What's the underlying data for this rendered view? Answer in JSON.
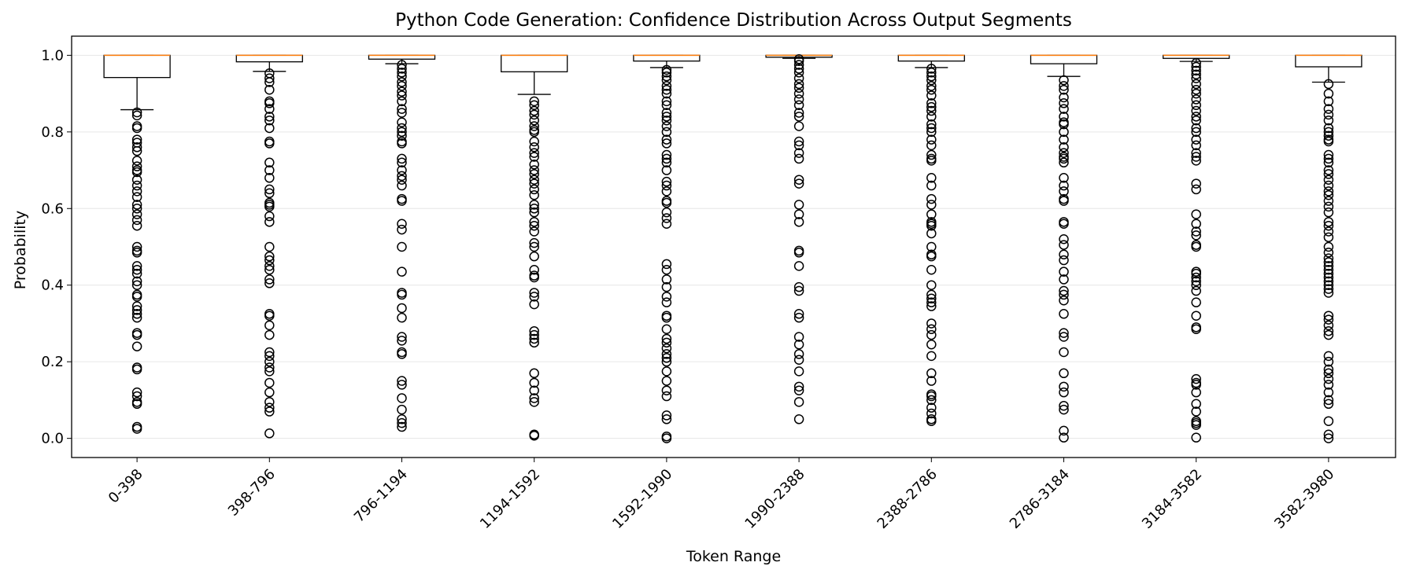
{
  "chart_data": {
    "type": "box",
    "title": "Python Code Generation: Confidence Distribution Across Output Segments",
    "xlabel": "Token Range",
    "ylabel": "Probability",
    "ylim": [
      -0.05,
      1.05
    ],
    "yticks": [
      0.0,
      0.2,
      0.4,
      0.6,
      0.8,
      1.0
    ],
    "ytick_labels": [
      "0.0",
      "0.2",
      "0.4",
      "0.6",
      "0.8",
      "1.0"
    ],
    "grid": "horizontal",
    "colors": {
      "box": "#000000",
      "median": "#ff7f0e",
      "grid": "#e6e6e6"
    },
    "categories": [
      "0-398",
      "398-796",
      "796-1194",
      "1194-1592",
      "1592-1990",
      "1990-2388",
      "2388-2786",
      "2786-3184",
      "3184-3582",
      "3582-3980"
    ],
    "boxes": [
      {
        "q1": 0.942,
        "median": 1.0,
        "q3": 1.0,
        "whisker_low": 0.858,
        "whisker_high": 1.0,
        "outliers": [
          0.851,
          0.843,
          0.815,
          0.81,
          0.78,
          0.772,
          0.76,
          0.75,
          0.725,
          0.71,
          0.7,
          0.695,
          0.675,
          0.66,
          0.645,
          0.63,
          0.61,
          0.6,
          0.585,
          0.57,
          0.555,
          0.5,
          0.49,
          0.485,
          0.45,
          0.44,
          0.43,
          0.41,
          0.4,
          0.375,
          0.37,
          0.345,
          0.335,
          0.325,
          0.315,
          0.275,
          0.27,
          0.24,
          0.185,
          0.18,
          0.12,
          0.11,
          0.095,
          0.09,
          0.03,
          0.025
        ]
      },
      {
        "q1": 0.983,
        "median": 1.0,
        "q3": 1.0,
        "whisker_low": 0.958,
        "whisker_high": 1.0,
        "outliers": [
          0.953,
          0.94,
          0.93,
          0.91,
          0.88,
          0.875,
          0.86,
          0.84,
          0.83,
          0.81,
          0.775,
          0.77,
          0.72,
          0.7,
          0.68,
          0.65,
          0.64,
          0.615,
          0.61,
          0.605,
          0.58,
          0.565,
          0.5,
          0.475,
          0.465,
          0.45,
          0.44,
          0.415,
          0.405,
          0.325,
          0.32,
          0.295,
          0.27,
          0.225,
          0.215,
          0.2,
          0.185,
          0.175,
          0.145,
          0.12,
          0.095,
          0.08,
          0.07,
          0.013
        ]
      },
      {
        "q1": 0.99,
        "median": 1.0,
        "q3": 1.0,
        "whisker_low": 0.978,
        "whisker_high": 1.0,
        "outliers": [
          0.975,
          0.965,
          0.955,
          0.945,
          0.93,
          0.92,
          0.905,
          0.895,
          0.88,
          0.86,
          0.85,
          0.825,
          0.81,
          0.8,
          0.79,
          0.775,
          0.77,
          0.73,
          0.72,
          0.7,
          0.685,
          0.675,
          0.66,
          0.625,
          0.62,
          0.56,
          0.545,
          0.5,
          0.435,
          0.38,
          0.375,
          0.34,
          0.315,
          0.265,
          0.255,
          0.225,
          0.22,
          0.15,
          0.14,
          0.105,
          0.075,
          0.05,
          0.04,
          0.03
        ]
      },
      {
        "q1": 0.957,
        "median": 1.0,
        "q3": 1.0,
        "whisker_low": 0.898,
        "whisker_high": 1.0,
        "outliers": [
          0.88,
          0.87,
          0.855,
          0.845,
          0.83,
          0.815,
          0.805,
          0.8,
          0.775,
          0.76,
          0.745,
          0.735,
          0.715,
          0.7,
          0.69,
          0.675,
          0.665,
          0.65,
          0.635,
          0.61,
          0.6,
          0.59,
          0.565,
          0.555,
          0.54,
          0.51,
          0.5,
          0.475,
          0.44,
          0.425,
          0.42,
          0.38,
          0.37,
          0.35,
          0.28,
          0.27,
          0.26,
          0.25,
          0.17,
          0.145,
          0.125,
          0.105,
          0.095,
          0.01,
          0.007
        ]
      },
      {
        "q1": 0.985,
        "median": 1.0,
        "q3": 1.0,
        "whisker_low": 0.968,
        "whisker_high": 1.0,
        "outliers": [
          0.962,
          0.955,
          0.945,
          0.935,
          0.92,
          0.91,
          0.9,
          0.88,
          0.87,
          0.85,
          0.84,
          0.83,
          0.815,
          0.8,
          0.78,
          0.77,
          0.74,
          0.73,
          0.72,
          0.7,
          0.67,
          0.66,
          0.645,
          0.62,
          0.615,
          0.59,
          0.575,
          0.56,
          0.455,
          0.44,
          0.415,
          0.395,
          0.37,
          0.355,
          0.32,
          0.315,
          0.285,
          0.26,
          0.25,
          0.235,
          0.22,
          0.21,
          0.2,
          0.175,
          0.15,
          0.125,
          0.11,
          0.06,
          0.05,
          0.005,
          0.0
        ]
      },
      {
        "q1": 0.995,
        "median": 1.0,
        "q3": 1.0,
        "whisker_low": 0.992,
        "whisker_high": 1.0,
        "outliers": [
          0.99,
          0.985,
          0.975,
          0.965,
          0.955,
          0.94,
          0.925,
          0.915,
          0.9,
          0.885,
          0.87,
          0.85,
          0.84,
          0.815,
          0.775,
          0.765,
          0.745,
          0.73,
          0.675,
          0.665,
          0.61,
          0.585,
          0.565,
          0.49,
          0.485,
          0.45,
          0.395,
          0.385,
          0.325,
          0.315,
          0.265,
          0.245,
          0.22,
          0.205,
          0.175,
          0.135,
          0.125,
          0.095,
          0.05
        ]
      },
      {
        "q1": 0.985,
        "median": 1.0,
        "q3": 1.0,
        "whisker_low": 0.968,
        "whisker_high": 1.0,
        "outliers": [
          0.965,
          0.955,
          0.945,
          0.935,
          0.92,
          0.91,
          0.895,
          0.875,
          0.865,
          0.855,
          0.84,
          0.82,
          0.81,
          0.8,
          0.78,
          0.765,
          0.74,
          0.73,
          0.725,
          0.68,
          0.66,
          0.625,
          0.61,
          0.585,
          0.565,
          0.56,
          0.555,
          0.535,
          0.5,
          0.48,
          0.475,
          0.44,
          0.4,
          0.375,
          0.365,
          0.355,
          0.345,
          0.3,
          0.285,
          0.27,
          0.245,
          0.215,
          0.17,
          0.15,
          0.115,
          0.11,
          0.1,
          0.08,
          0.065,
          0.05,
          0.045
        ]
      },
      {
        "q1": 0.978,
        "median": 1.0,
        "q3": 1.0,
        "whisker_low": 0.945,
        "whisker_high": 1.0,
        "outliers": [
          0.935,
          0.92,
          0.91,
          0.89,
          0.875,
          0.86,
          0.84,
          0.825,
          0.82,
          0.8,
          0.78,
          0.76,
          0.745,
          0.735,
          0.73,
          0.72,
          0.68,
          0.66,
          0.645,
          0.625,
          0.62,
          0.565,
          0.56,
          0.52,
          0.505,
          0.48,
          0.465,
          0.435,
          0.415,
          0.385,
          0.375,
          0.36,
          0.325,
          0.275,
          0.265,
          0.225,
          0.17,
          0.135,
          0.12,
          0.085,
          0.075,
          0.02,
          0.002
        ]
      },
      {
        "q1": 0.992,
        "median": 1.0,
        "q3": 1.0,
        "whisker_low": 0.984,
        "whisker_high": 1.0,
        "outliers": [
          0.98,
          0.97,
          0.96,
          0.95,
          0.94,
          0.925,
          0.91,
          0.9,
          0.885,
          0.87,
          0.855,
          0.84,
          0.83,
          0.81,
          0.8,
          0.78,
          0.765,
          0.745,
          0.735,
          0.725,
          0.665,
          0.65,
          0.585,
          0.56,
          0.54,
          0.53,
          0.505,
          0.5,
          0.435,
          0.43,
          0.42,
          0.41,
          0.4,
          0.385,
          0.355,
          0.32,
          0.29,
          0.285,
          0.155,
          0.145,
          0.14,
          0.12,
          0.09,
          0.07,
          0.045,
          0.04,
          0.035,
          0.002
        ]
      },
      {
        "q1": 0.97,
        "median": 1.0,
        "q3": 1.0,
        "whisker_low": 0.93,
        "whisker_high": 1.0,
        "outliers": [
          0.925,
          0.9,
          0.88,
          0.86,
          0.845,
          0.83,
          0.81,
          0.8,
          0.79,
          0.78,
          0.775,
          0.74,
          0.73,
          0.72,
          0.7,
          0.69,
          0.675,
          0.66,
          0.645,
          0.635,
          0.62,
          0.605,
          0.59,
          0.565,
          0.555,
          0.54,
          0.525,
          0.5,
          0.485,
          0.47,
          0.46,
          0.45,
          0.44,
          0.43,
          0.42,
          0.41,
          0.4,
          0.39,
          0.38,
          0.32,
          0.31,
          0.295,
          0.28,
          0.27,
          0.215,
          0.2,
          0.18,
          0.17,
          0.155,
          0.14,
          0.12,
          0.1,
          0.09,
          0.045,
          0.01,
          0.0
        ]
      }
    ]
  }
}
